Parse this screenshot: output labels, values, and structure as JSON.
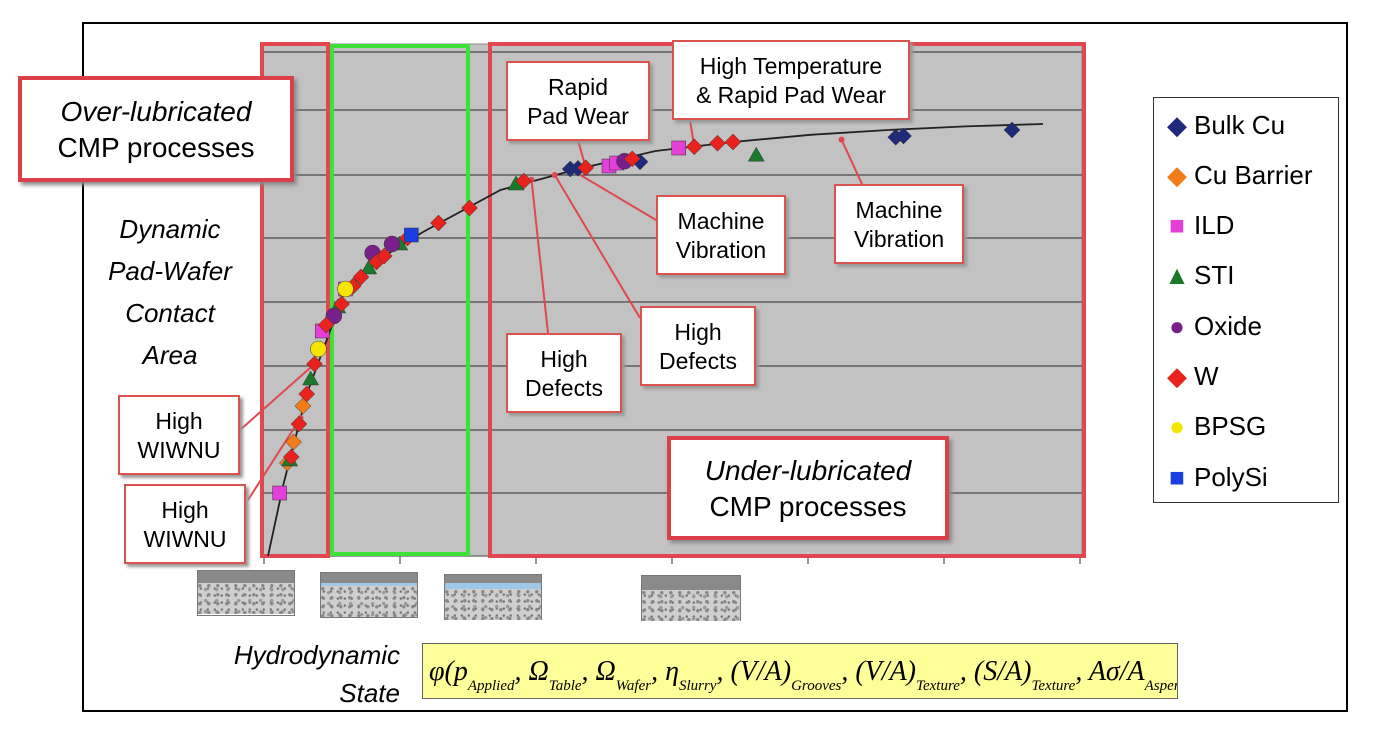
{
  "chart_data": {
    "type": "scatter",
    "ylabel_lines": [
      "Dynamic",
      "Pad-Wafer",
      "Contact",
      "Area"
    ],
    "xlabel_lines": [
      "Hydrodynamic",
      "State"
    ],
    "grid": true,
    "legend_position": "right",
    "series": [
      {
        "name": "Bulk Cu",
        "marker": "diamond",
        "color": "#1f2a7a",
        "points": [
          [
            3.9,
            6.45
          ],
          [
            4.0,
            6.46
          ],
          [
            4.8,
            6.57
          ],
          [
            8.1,
            6.98
          ],
          [
            8.2,
            7.0
          ],
          [
            9.6,
            7.1
          ]
        ]
      },
      {
        "name": "Cu Barrier",
        "marker": "diamond",
        "color": "#f07d1a",
        "points": [
          [
            0.25,
            1.55
          ],
          [
            0.33,
            1.9
          ],
          [
            0.45,
            2.5
          ]
        ]
      },
      {
        "name": "ILD",
        "marker": "square",
        "color": "#e43fd9",
        "points": [
          [
            0.15,
            1.05
          ],
          [
            0.7,
            3.75
          ],
          [
            1.0,
            4.45
          ],
          [
            4.4,
            6.5
          ],
          [
            4.5,
            6.55
          ],
          [
            5.3,
            6.8
          ]
        ]
      },
      {
        "name": "STI",
        "marker": "triangle",
        "color": "#1a7a2a",
        "points": [
          [
            0.28,
            1.6
          ],
          [
            0.55,
            2.95
          ],
          [
            0.9,
            4.15
          ],
          [
            1.3,
            4.8
          ],
          [
            1.7,
            5.2
          ],
          [
            3.2,
            6.2
          ],
          [
            6.3,
            6.68
          ]
        ]
      },
      {
        "name": "Oxide",
        "marker": "circle",
        "color": "#7a1f8a",
        "points": [
          [
            0.85,
            4.0
          ],
          [
            1.35,
            5.05
          ],
          [
            1.6,
            5.2
          ],
          [
            4.6,
            6.58
          ]
        ]
      },
      {
        "name": "W",
        "marker": "diamond",
        "color": "#e8231e",
        "points": [
          [
            0.3,
            1.65
          ],
          [
            0.4,
            2.2
          ],
          [
            0.5,
            2.7
          ],
          [
            0.6,
            3.2
          ],
          [
            0.75,
            3.85
          ],
          [
            0.95,
            4.2
          ],
          [
            1.1,
            4.5
          ],
          [
            1.2,
            4.65
          ],
          [
            1.4,
            4.9
          ],
          [
            1.5,
            5.0
          ],
          [
            1.8,
            5.3
          ],
          [
            2.2,
            5.55
          ],
          [
            2.6,
            5.8
          ],
          [
            3.3,
            6.25
          ],
          [
            4.1,
            6.47
          ],
          [
            4.7,
            6.62
          ],
          [
            5.5,
            6.82
          ],
          [
            5.8,
            6.88
          ],
          [
            6.0,
            6.9
          ]
        ]
      },
      {
        "name": "BPSG",
        "marker": "circle",
        "color": "#f5e600",
        "points": [
          [
            0.65,
            3.45
          ],
          [
            1.0,
            4.45
          ]
        ]
      },
      {
        "name": "PolySi",
        "marker": "square",
        "color": "#1a3fe0",
        "points": [
          [
            1.85,
            5.35
          ]
        ]
      }
    ],
    "trend_curve": [
      [
        0.0,
        0.0
      ],
      [
        0.2,
        1.2
      ],
      [
        0.5,
        2.7
      ],
      [
        1.0,
        4.45
      ],
      [
        1.5,
        5.0
      ],
      [
        2.0,
        5.4
      ],
      [
        3.0,
        6.1
      ],
      [
        4.0,
        6.45
      ],
      [
        5.0,
        6.75
      ],
      [
        6.0,
        6.9
      ],
      [
        7.0,
        7.02
      ],
      [
        8.0,
        7.1
      ],
      [
        9.0,
        7.16
      ],
      [
        10.0,
        7.2
      ]
    ]
  },
  "regions": {
    "over_lubricated": {
      "line1": "Over-lubricated",
      "line2": "CMP processes"
    },
    "under_lubricated": {
      "line1": "Under-lubricated",
      "line2": "CMP processes"
    }
  },
  "callouts": {
    "wiwnu_1": [
      "High",
      "WIWNU"
    ],
    "wiwnu_2": [
      "High",
      "WIWNU"
    ],
    "rapid_pad_wear": [
      "Rapid",
      "Pad Wear"
    ],
    "high_temp": [
      "High Temperature",
      "& Rapid Pad Wear"
    ],
    "vibration_1": [
      "Machine",
      "Vibration"
    ],
    "vibration_2": [
      "Machine",
      "Vibration"
    ],
    "defects_1": [
      "High",
      "Defects"
    ],
    "defects_2": [
      "High",
      "Defects"
    ]
  },
  "formula": {
    "phi": "φ",
    "open": "(",
    "p": "p",
    "p_sub": "Applied",
    "omega": "Ω",
    "omega_table_sub": "Table",
    "omega_wafer_sub": "Wafer",
    "eta": "η",
    "eta_sub": "Slurry",
    "v_a": "(V/A)",
    "grooves_sub": "Grooves",
    "texture_sub": "Texture",
    "s_a": "(S/A)",
    "area_ratio": "Aσ/A",
    "area_sub": "Asperity",
    "comma": ","
  }
}
